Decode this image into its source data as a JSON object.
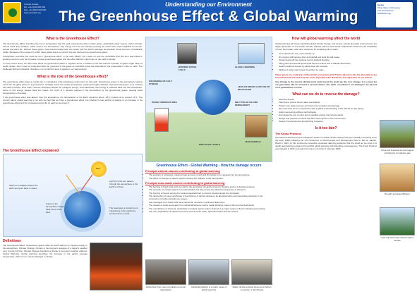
{
  "header": {
    "subtitle": "Understanding our Environment",
    "title": "The Greenhouse Effect & Global Warming",
    "contact_lines": [
      "Contact Details",
      "Tel: +44 (0)00 000 000",
      "Fax: +44 (0)00 000 000",
      "www.example.org"
    ],
    "series_head": "Series",
    "series_lines": [
      "Other titles in this series:",
      "The Greenhouse",
      "Global Energy"
    ]
  },
  "left": {
    "what_heading": "What is the Greenhouse Effect?",
    "what_para_1": "The Greenhouse Effect describes the rise in temperature that the earth experiences when certain gases, particularly water vapour, carbon dioxide, nitrous oxide and methane, which exist in the atmosphere, trap energy from the sun thereby keeping the earth warm and hospitable for human, animal and plant life. Without these gases, heat would escape back into space and the earth's average temperature would become considerably colder. Because of the manner by which these gases warm our world, they are referred to as greenhouse gases.",
    "what_para_2": "Atmospheric scientists first used the term \"greenhouse effect\" in the early 1800's, but it was not until the mid-1980's that this term was linked to growing concerns over the increase in these greenhouse gases and the effect that this might have on the earth's climate.",
    "what_para_3": "In more recent times, we often hear about the greenhouse effect in negative terms in relation to the fact that the increase of gases might have on world climate, but it must be understood that the presence of the gases at controlled levels are essential for the preservation of life on earth. The challenge facing humankind, therefore, is to control the level of gases in our natural world.",
    "role_heading": "What is the role of the Greenhouse effect?",
    "role_para_1": "The greenhouse effect plays a crucial role in maintaining a life-sustaining environment on the earth. Greenhouse gases in the atmosphere behave much like the glass panes in a greenhouse. Sunlight enters the earth's atmosphere, passing through a blanket of greenhouse gases. As it reaches the earth's surface, land, water, and the biosphere absorb the sunlight's energy. Once absorbed, this energy is reflected back into the atmosphere. Some of this energy passes back into space, but much of it remains trapped in the atmosphere by the greenhouse gases, causing world temperatures to increase.",
    "role_para_2": "If the greenhouse effect was absent from the atmosphere, the temperature of the Earth would be about -18°C instead of its present 14°C. The concern about global warming is not with the fact that we have a greenhouse effect, but whether human activity is leading to an increase in the greenhouse effect and the consequences to life on earth as we know it.",
    "explained_heading": "The Greenhouse Effect explained",
    "sun_label": "Sun",
    "explained_labels": [
      "Light from the sun passes through the atmosphere to the Earth's surface.",
      "Some sun radiation leaves the earth and goes back to space",
      "Gases in the atmosphere radiate back some of the heat.",
      "The heat plays a crucial role in maintaining a life-sustaining environment on earth."
    ],
    "defs_heading": "Definitions",
    "defs_para": "The Greenhouse Effect: Greenhouse gases make the earth warmer by trapping energy in the atmosphere. Climate Change: Climate is the long-term average of a region's weather over a period of time. Climate Change describes a change in long-term weather patterns. Global Warming: Global warming describes the increase in the earth's average temperature, which in turn causes changes in climate."
  },
  "center": {
    "diagram_title": "Greenhouse Effect - Global Warming - How the damage occurs",
    "diagram_labels": [
      "BURNING FOSSIL FUELS",
      "GLOBAL WARMING",
      "RISING TEMPERATURES",
      "MELT POLAR ICE AND PERMAFROST",
      "LESS ICE MEANS LESS SOLAR REFLECTION",
      "WEAKENING OF GULF STREAM",
      "LESS RAINFALL",
      "RISE IN SEA LEVELS"
    ],
    "causes_heading": "Principal natural causes contributing to global warming",
    "causes_items": [
      "The eruption of volcanoes, causing huge amounts of ash and chemicals to be released into the atmosphere.",
      "The effect of changes in desert regions causing the pollution of the atmosphere."
    ],
    "manmade_heading": "Principal man-made causes contributing to global warming",
    "manmade_items": [
      "The burning of fossil fuels such as coal for the generation of electric power for heating and for industrial purposes.",
      "The emission of exhaust gases from automobiles and other petrol and diesel burning forms of transport.",
      "The burning of forests across the tropical equatorial belt to convert forested areas into farmlands.",
      "The destruction of trees contributes to the build-up of carbon dioxide to be absorbed with a corresponding reduction in the conversion of carbon dioxide into oxygen.",
      "Gas shortages from fossil fuels have caused an increase in rainforest destruction.",
      "The release of waste and gases from industrial factories such a metal refineries, paper mills and chemical plants.",
      "The manufacture of charcoal, particularly in tropical regions where charcoal is a major source of fuel for heating and cooking.",
      "The over-exploitation of natural resources such as fresh water, agricultural land and the oceans."
    ],
    "captions": [
      "Destruction from uses of pollution and soil degradation",
      "Industrial pollution is a major cause of global warming",
      "Water vehicle exhaust fumes emit carbon monoxide, a harmful gas"
    ]
  },
  "right": {
    "how_heading": "How will global warming affect the world",
    "how_para": "Global warming will cause significant global climate change. Our homes, animal and plant environments, are highly dependent on the world's climate. Climate patterns and human adaptations determine the availability of food, fresh water, and other resources for sustaining life on earth.",
    "how_items": [
      "As temperatures rise, rivers will dry up.",
      "Dry regions will become drier and rainfall and plant life will cease.",
      "Ocean levels will rise causing severe lowland flooding.",
      "Many plant and animal species will become extinct due to habitat destruction.",
      "Health problems caused by global heat will increase.",
      "Melting of polar regions and Greenland ice caps."
    ],
    "warning_text": "These gases are a vital part of the world's ecosystem and if their emissions into the atmosphere are not curbed and reversed if we are not to experience the disastrous consequences of our actions.",
    "future_text": "Any change to the current climate trend could cause the world we live in to change. It is a must for our generation. We do not have a second chance. The earth, our planet is our heritage to be passed on to generations to come.",
    "do_heading": "What can we do to reverse the damage?",
    "do_items": [
      "Save the forests.",
      "Plant trees, protect forest, lakes and islands.",
      "Protect your water sources and rivers from pollution and damage.",
      "We must work more in partnership with a global understanding of the threats we are facing.",
      "Adopt new energy efficient technologies.",
      "Encourage the use of solar and renewable energy and recycle waste.",
      "Design and produce products that have less impact on the environment.",
      "Protect the environment and all living creatures."
    ],
    "late_heading": "Is it too late?",
    "kyoto_heading": "The Kyoto Protocol",
    "kyoto_para": "International awareness and subsequent actions to tackle climate change has been steadily increasing since the early 1990s following the UN conference on Environment and Development held in Rio de Janeiro, Brazil in 1992. At this conference scientists presented alarming evidence that the world as we know it is rapidly approaching a state of irreversible global warming with disturbing consequences. The Kyoto Protocol was adopted in 1997 and a protocol came into force in February 2005."
  },
  "thumbs": {
    "captions": [
      "Cows and livestock are the biggest contributors of methane gas",
      "Drought and desertification",
      "Lush tropical forests absorb carbon dioxide"
    ]
  }
}
